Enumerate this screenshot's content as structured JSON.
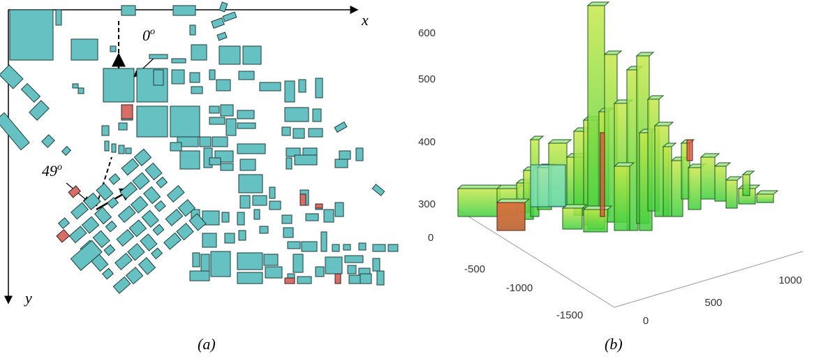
{
  "panel_a": {
    "x_axis_label": "x",
    "y_axis_label": "y",
    "angle_top": {
      "value": "0",
      "unit": "o"
    },
    "angle_left": {
      "value": "49",
      "unit": "o"
    },
    "caption": "(a)"
  },
  "panel_b": {
    "z_ticks": [
      "300",
      "400",
      "500",
      "600"
    ],
    "depth_ticks": [
      "0",
      "-500",
      "-1000",
      "-1500"
    ],
    "width_ticks": [
      "0",
      "500",
      "1000"
    ],
    "caption": "(b)"
  }
}
